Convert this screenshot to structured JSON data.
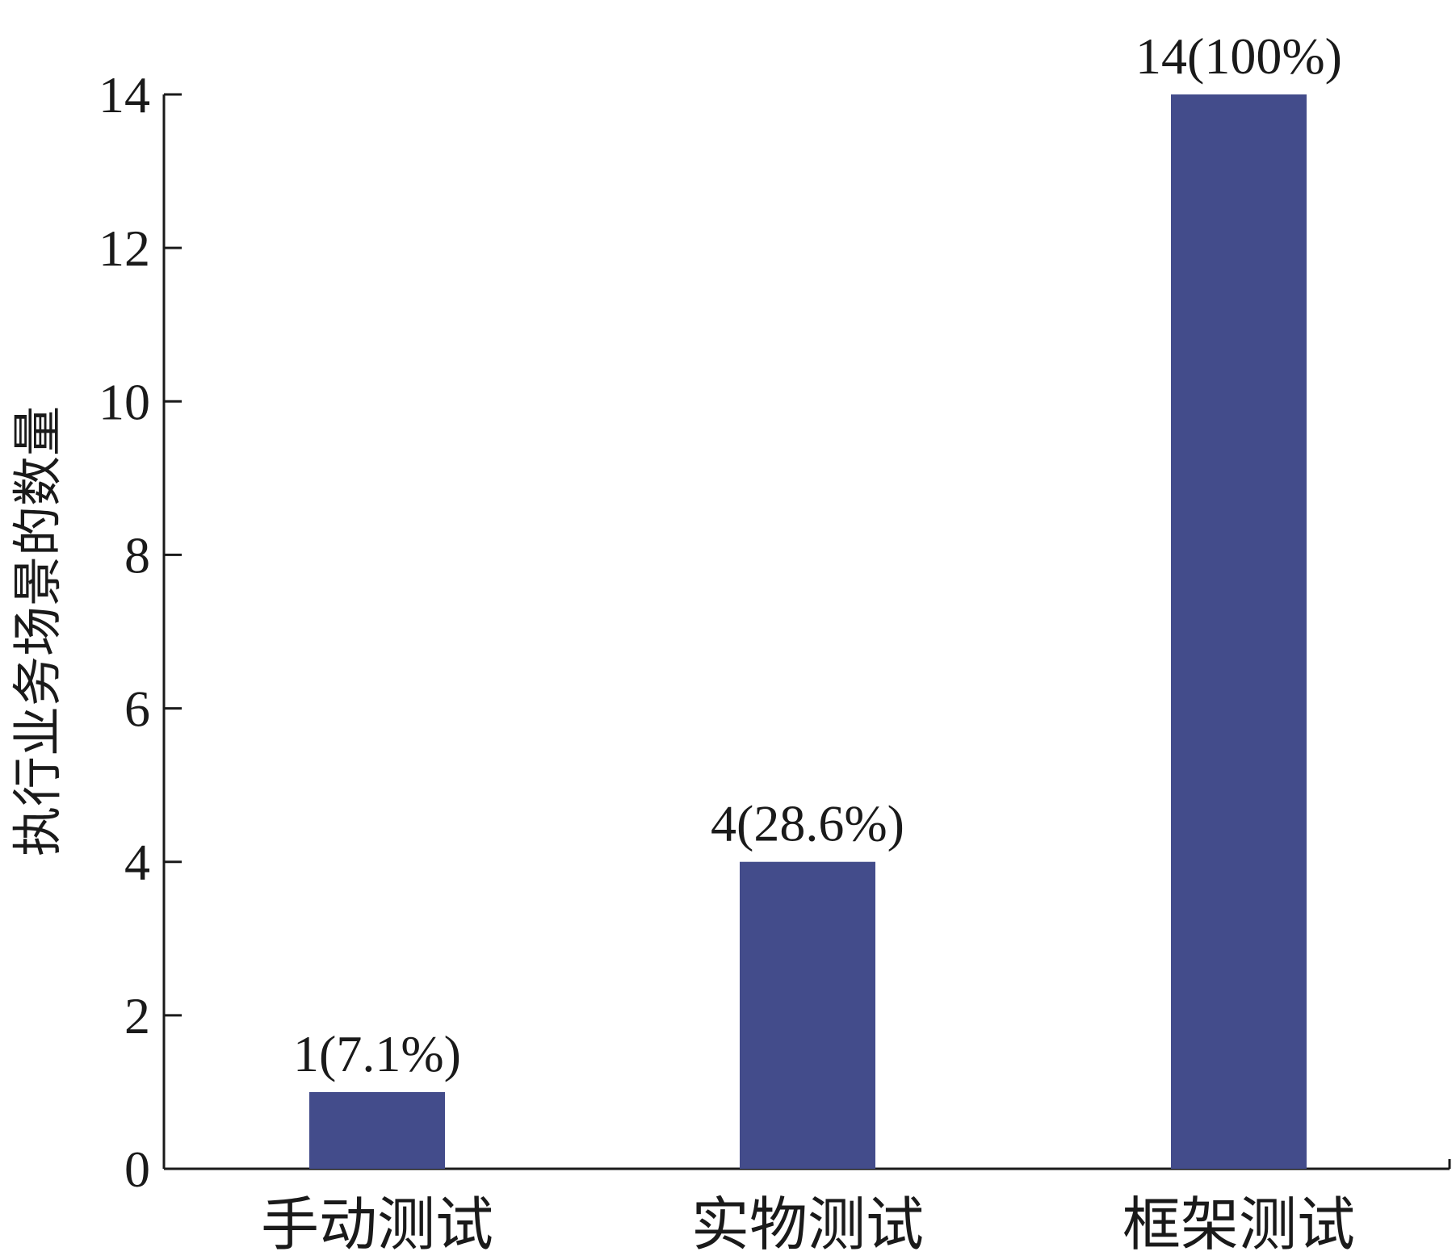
{
  "chart_data": {
    "type": "bar",
    "title": "",
    "xlabel": "",
    "ylabel": "执行业务场景的数量",
    "categories": [
      "手动测试",
      "实物测试",
      "框架测试"
    ],
    "values": [
      1,
      4,
      14
    ],
    "data_labels": [
      "1(7.1%)",
      "4(28.6%)",
      "14(100%)"
    ],
    "ylim": [
      0,
      14
    ],
    "yticks": [
      0,
      2,
      4,
      6,
      8,
      10,
      12,
      14
    ],
    "grid": false,
    "legend": "none",
    "bar_color": "#434C8B",
    "axis_color": "#1a1a1a"
  }
}
